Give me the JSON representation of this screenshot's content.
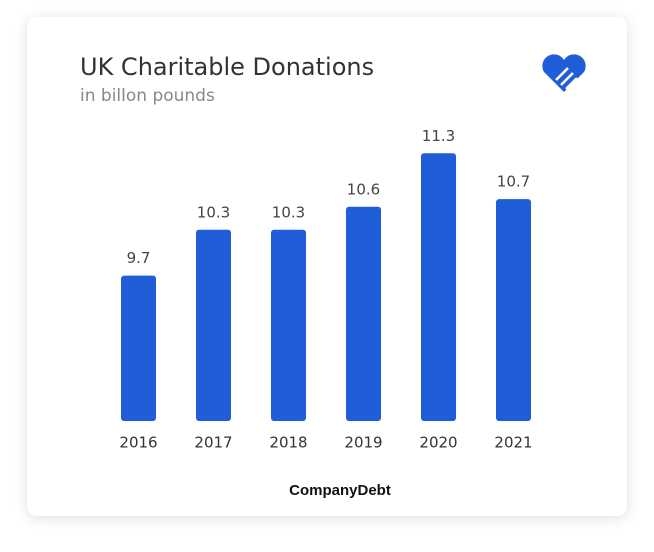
{
  "chart_data": {
    "type": "bar",
    "title": "UK Charitable Donations",
    "subtitle": "in billon pounds",
    "categories": [
      "2016",
      "2017",
      "2018",
      "2019",
      "2020",
      "2021"
    ],
    "values": [
      9.7,
      10.3,
      10.3,
      10.6,
      11.3,
      10.7
    ],
    "color": "#1f5ed8",
    "ylim": [
      7.8,
      11.8
    ],
    "source": "CompanyDebt"
  }
}
